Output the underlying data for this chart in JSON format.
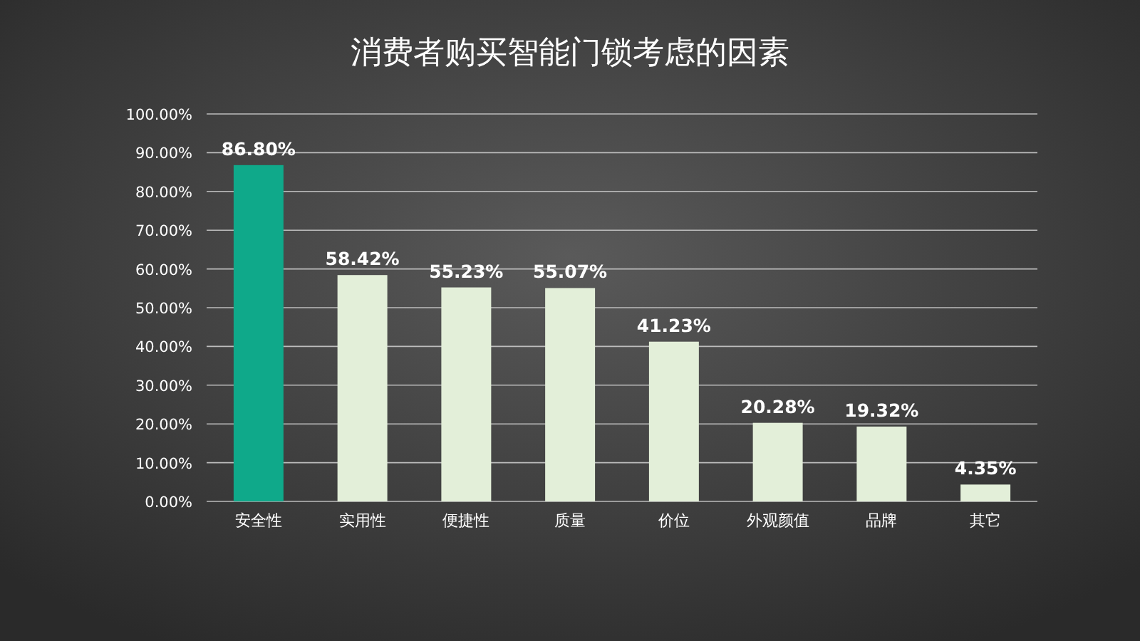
{
  "chart_data": {
    "type": "bar",
    "title": "消费者购买智能门锁考虑的因素",
    "categories": [
      "安全性",
      "实用性",
      "便捷性",
      "质量",
      "价位",
      "外观颜值",
      "品牌",
      "其它"
    ],
    "values": [
      86.8,
      58.42,
      55.23,
      55.07,
      41.23,
      20.28,
      19.32,
      4.35
    ],
    "value_labels": [
      "86.80%",
      "58.42%",
      "55.23%",
      "55.07%",
      "41.23%",
      "20.28%",
      "19.32%",
      "4.35%"
    ],
    "colors": [
      "#0fa98a",
      "#e3efd9",
      "#e3efd9",
      "#e3efd9",
      "#e3efd9",
      "#e3efd9",
      "#e3efd9",
      "#e3efd9"
    ],
    "ylim": [
      0,
      100
    ],
    "yticks": [
      {
        "value": 0,
        "label": "0.00%"
      },
      {
        "value": 10,
        "label": "10.00%"
      },
      {
        "value": 20,
        "label": "20.00%"
      },
      {
        "value": 30,
        "label": "30.00%"
      },
      {
        "value": 40,
        "label": "40.00%"
      },
      {
        "value": 50,
        "label": "50.00%"
      },
      {
        "value": 60,
        "label": "60.00%"
      },
      {
        "value": 70,
        "label": "70.00%"
      },
      {
        "value": 80,
        "label": "80.00%"
      },
      {
        "value": 90,
        "label": "90.00%"
      },
      {
        "value": 100,
        "label": "100.00%"
      }
    ],
    "grid": "y"
  }
}
